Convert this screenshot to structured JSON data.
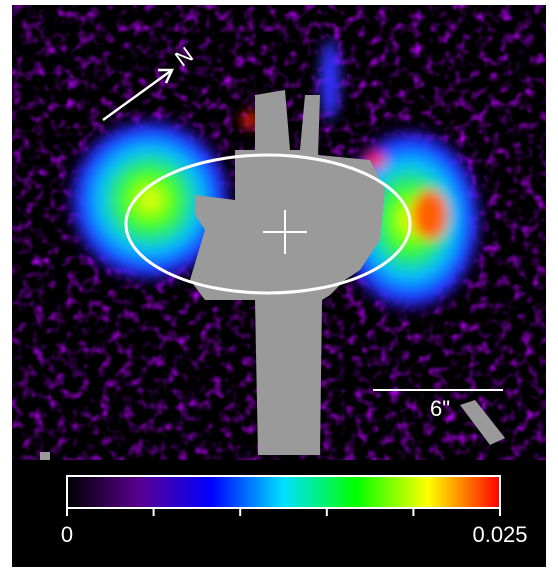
{
  "image": {
    "north_label": "N",
    "scale_label": "6\""
  },
  "colorbar": {
    "min": 0,
    "max": 0.025,
    "ticks": [
      0,
      0.005,
      0.01,
      0.015,
      0.02,
      0.025
    ],
    "colors": [
      "#000000",
      "#5a0090",
      "#0000ff",
      "#00e0ff",
      "#00ff00",
      "#ffff00",
      "#ff0000"
    ]
  }
}
